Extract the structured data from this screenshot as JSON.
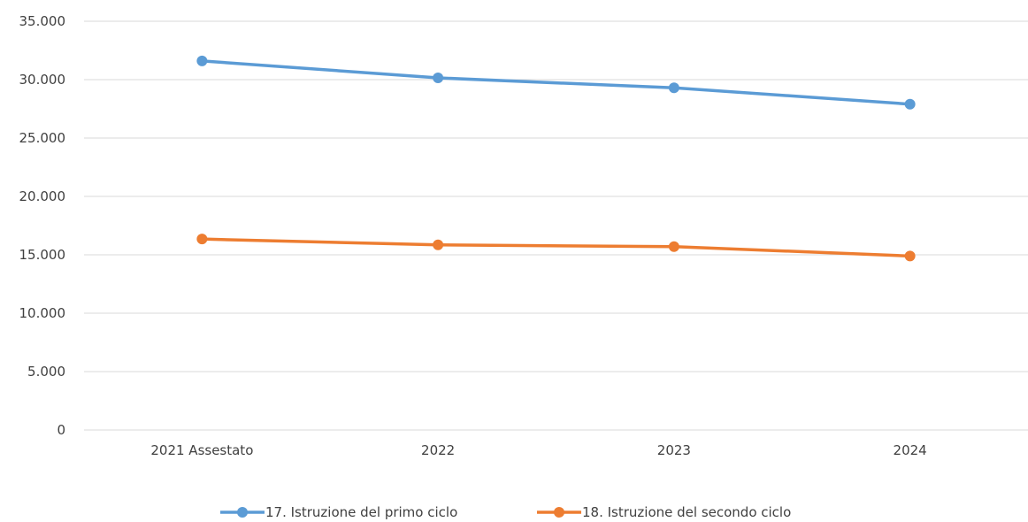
{
  "chart_data": {
    "type": "line",
    "categories": [
      "2021 Assestato",
      "2022",
      "2023",
      "2024"
    ],
    "series": [
      {
        "name": "17. Istruzione del primo ciclo",
        "values": [
          31600,
          30150,
          29300,
          27900
        ],
        "color": "#5b9bd5"
      },
      {
        "name": "18. Istruzione del secondo ciclo",
        "values": [
          16350,
          15850,
          15700,
          14900
        ],
        "color": "#ed7d31"
      }
    ],
    "ylim": [
      0,
      35000
    ],
    "yticks": [
      0,
      5000,
      10000,
      15000,
      20000,
      25000,
      30000,
      35000
    ],
    "ytick_labels": [
      "0",
      "5.000",
      "10.000",
      "15.000",
      "20.000",
      "25.000",
      "30.000",
      "35.000"
    ],
    "grid": true,
    "legend_position": "bottom",
    "title": "",
    "xlabel": "",
    "ylabel": ""
  }
}
